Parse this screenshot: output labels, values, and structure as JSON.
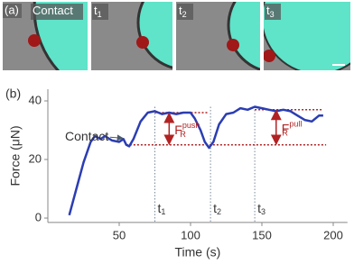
{
  "figure": {
    "panel_a": {
      "label": "(a)",
      "frames": [
        {
          "text": "Contact"
        },
        {
          "text": "t",
          "sub": "1"
        },
        {
          "text": "t",
          "sub": "2"
        },
        {
          "text": "t",
          "sub": "3"
        }
      ]
    },
    "panel_b": {
      "label": "(b)"
    }
  },
  "chart_data": {
    "type": "line",
    "xlabel": "Time (s)",
    "ylabel": "Force (μN)",
    "x": [
      15,
      20,
      25,
      30,
      33,
      37,
      40,
      45,
      50,
      53,
      55,
      57,
      60,
      65,
      70,
      75,
      80,
      85,
      90,
      95,
      100,
      103,
      107,
      110,
      113,
      116,
      120,
      125,
      130,
      135,
      140,
      145,
      150,
      155,
      160,
      165,
      170,
      175,
      180,
      185,
      190,
      193
    ],
    "series": [
      {
        "color": "#2b3db3",
        "values": [
          1,
          10,
          19,
          26,
          28,
          27,
          28,
          26.5,
          26,
          27,
          25,
          24.5,
          27,
          33,
          36,
          36.5,
          35.5,
          36,
          35.5,
          36,
          36,
          34,
          30,
          26,
          24,
          26,
          32,
          35.5,
          36,
          37.5,
          37,
          38,
          37.5,
          37,
          36.5,
          37,
          36.5,
          35,
          33.5,
          33,
          35,
          35
        ]
      }
    ],
    "xlim": [
      0,
      210
    ],
    "ylim": [
      -1.5,
      44
    ],
    "xticks": [
      50,
      100,
      150,
      200
    ],
    "yticks": [
      0,
      20,
      40
    ],
    "reference_lines": [
      {
        "y": 25,
        "x": [
          55,
          195
        ]
      },
      {
        "y": 36,
        "x": [
          75,
          112
        ]
      },
      {
        "y": 37,
        "x": [
          145,
          193
        ]
      }
    ],
    "reference_color": "#b22222",
    "markers": [
      {
        "label": "t",
        "sub": "1",
        "x": 75
      },
      {
        "label": "t",
        "sub": "2",
        "x": 114
      },
      {
        "label": "t",
        "sub": "3",
        "x": 145
      }
    ],
    "arrows": [
      {
        "x": 85,
        "y": [
          36,
          25
        ],
        "text": "F",
        "sub": "R",
        "sup": "push"
      },
      {
        "x": 160,
        "y": [
          37,
          25
        ],
        "text": "F",
        "sub": "R",
        "sup": "pull"
      }
    ],
    "annotation": {
      "text": "Contact",
      "x": 53,
      "y": 27
    }
  }
}
